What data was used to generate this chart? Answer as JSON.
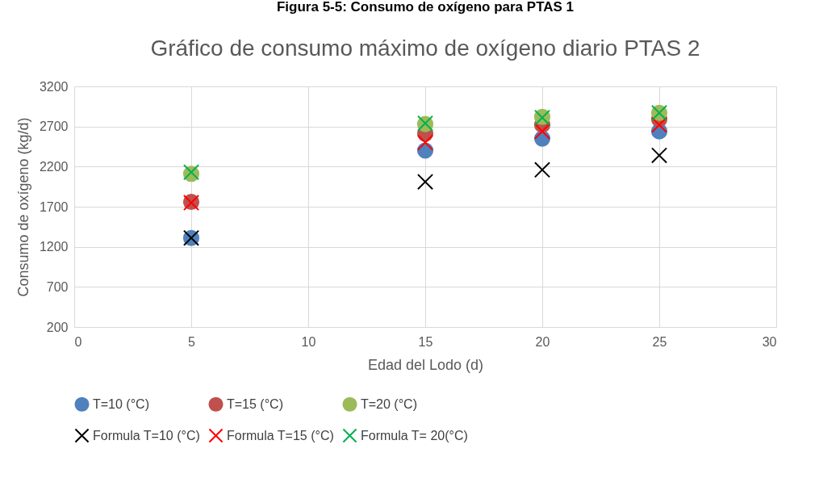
{
  "chart_data": {
    "type": "scatter",
    "title": "Gráfico de consumo máximo de oxígeno diario PTAS 2",
    "annotations": [
      "Figura 5-5: Consumo de oxígeno para PTAS 1"
    ],
    "xlabel": "Edad del Lodo (d)",
    "ylabel": "Consumo de oxígeno (kg/d)",
    "x": [
      5,
      15,
      20,
      25
    ],
    "xlim": [
      0,
      30
    ],
    "xticks": [
      0,
      5,
      10,
      15,
      20,
      25,
      30
    ],
    "ylim": [
      200,
      3200
    ],
    "yticks": [
      200,
      700,
      1200,
      1700,
      2200,
      2700,
      3200
    ],
    "grid": true,
    "legend": "bottom",
    "series": [
      {
        "name": "T=10 (°C)",
        "color": "#4f81bd",
        "marker": "circle",
        "values": [
          1310,
          2400,
          2550,
          2640
        ]
      },
      {
        "name": "T=15 (°C)",
        "color": "#c0504d",
        "marker": "circle",
        "values": [
          1760,
          2610,
          2720,
          2790
        ]
      },
      {
        "name": "T=20 (°C)",
        "color": "#9bbb59",
        "marker": "circle",
        "values": [
          2110,
          2730,
          2820,
          2870
        ]
      },
      {
        "name": "Formula T=10 (°C)",
        "color": "#000000",
        "marker": "cross",
        "values": [
          1310,
          2010,
          2160,
          2340
        ]
      },
      {
        "name": "Formula T=15 (°C)",
        "color": "#ff0000",
        "marker": "cross",
        "values": [
          1750,
          2500,
          2640,
          2720
        ]
      },
      {
        "name": "Formula T= 20(°C)",
        "color": "#00b050",
        "marker": "cross",
        "values": [
          2130,
          2740,
          2810,
          2870
        ]
      }
    ]
  }
}
